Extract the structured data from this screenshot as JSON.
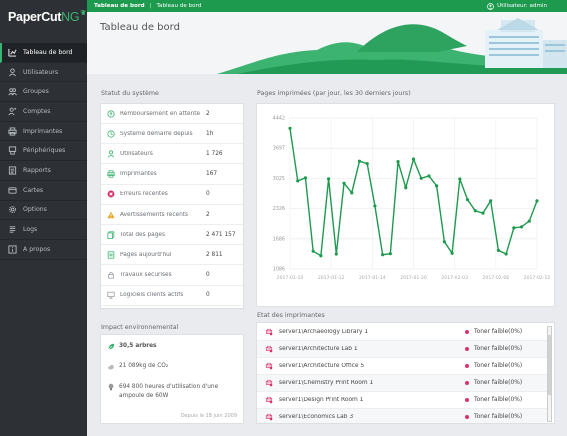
{
  "app": {
    "logo_main": "PaperCut",
    "logo_accent": "NG"
  },
  "colors": {
    "accent": "#1d9a4e",
    "sidebar": "#2d3136",
    "danger": "#d6336c",
    "line": "#1d9a4e"
  },
  "topbar": {
    "crumb_home": "Tableau de bord",
    "crumb_current": "Tableau de bord",
    "user": "Utilisateur: admin"
  },
  "sidebar": {
    "items": [
      {
        "label": "Tableau de bord",
        "icon": "dashboard-icon"
      },
      {
        "label": "Utilisateurs",
        "icon": "user-icon"
      },
      {
        "label": "Groupes",
        "icon": "group-icon"
      },
      {
        "label": "Comptes",
        "icon": "accounts-icon"
      },
      {
        "label": "Imprimantes",
        "icon": "printer-icon"
      },
      {
        "label": "Périphériques",
        "icon": "device-icon"
      },
      {
        "label": "Rapports",
        "icon": "report-icon"
      },
      {
        "label": "Cartes",
        "icon": "card-icon"
      },
      {
        "label": "Options",
        "icon": "gear-icon"
      },
      {
        "label": "Logs",
        "icon": "log-icon"
      },
      {
        "label": "A propos",
        "icon": "info-icon"
      }
    ]
  },
  "page": {
    "title": "Tableau de bord"
  },
  "status": {
    "title": "Statut du système",
    "rows": [
      {
        "label": "Remboursement en attente",
        "value": "2",
        "icon": "refund-icon"
      },
      {
        "label": "Système démarré depuis",
        "value": "1h",
        "icon": "clock-icon"
      },
      {
        "label": "Utilisateurs",
        "value": "1 726",
        "icon": "user-icon"
      },
      {
        "label": "Imprimantes",
        "value": "167",
        "icon": "printer-icon"
      },
      {
        "label": "Erreurs récentes",
        "value": "0",
        "icon": "error-icon"
      },
      {
        "label": "Avertissements récents",
        "value": "2",
        "icon": "warning-icon"
      },
      {
        "label": "Total des pages",
        "value": "2 471 157",
        "icon": "pages-icon"
      },
      {
        "label": "Pages aujourd'hui",
        "value": "2 811",
        "icon": "pages-today-icon"
      },
      {
        "label": "Travaux sécurisés",
        "value": "0",
        "icon": "lock-icon"
      },
      {
        "label": "Logiciels clients actifs",
        "value": "0",
        "icon": "client-icon"
      }
    ]
  },
  "environment": {
    "title": "Impact environnemental",
    "trees": "30,5 arbres",
    "co2": "21 089kg de CO₂",
    "bulb": "694 800 heures d'utilisation d'une ampoule de 60W",
    "since": "Depuis le 18 juin 2009"
  },
  "chart_data": {
    "type": "line",
    "title": "Pages imprimées (par jour, les 30 derniers jours)",
    "ylim": [
      1086,
      4442
    ],
    "y_ticks": [
      "4442",
      "3697",
      "3025",
      "2326",
      "1686",
      "1086"
    ],
    "x_ticks": [
      "2017-01-10",
      "2017-01-12",
      "2017-01-14",
      "2017-01-20",
      "2017-02-03",
      "2017-02-06",
      "2017-02-12"
    ],
    "grid": true,
    "series": [
      {
        "values": [
          4213,
          3044,
          3112,
          1482,
          1380,
          3089,
          1418,
          2992,
          2779,
          3482,
          3428,
          2488,
          1404,
          1426,
          3472,
          2894,
          3529,
          3103,
          3154,
          2934,
          1693,
          1436,
          3087,
          2627,
          2381,
          2327,
          2600,
          1500,
          1418,
          2000,
          2022,
          2151,
          2600
        ]
      }
    ]
  },
  "printers": {
    "title": "Etat des imprimantes",
    "rows": [
      {
        "name": "server1\\Archaeology Library 1",
        "status": "Toner faible(0%)"
      },
      {
        "name": "server1\\Architecture Lab 1",
        "status": "Toner faible(0%)"
      },
      {
        "name": "server1\\Architecture Office 5",
        "status": "Toner faible(0%)"
      },
      {
        "name": "server1\\Chemistry Print Room 1",
        "status": "Toner faible(0%)"
      },
      {
        "name": "server1\\Design Print Room 1",
        "status": "Toner faible(0%)"
      },
      {
        "name": "server1\\Economics Lab 3",
        "status": "Toner faible(0%)"
      }
    ]
  }
}
